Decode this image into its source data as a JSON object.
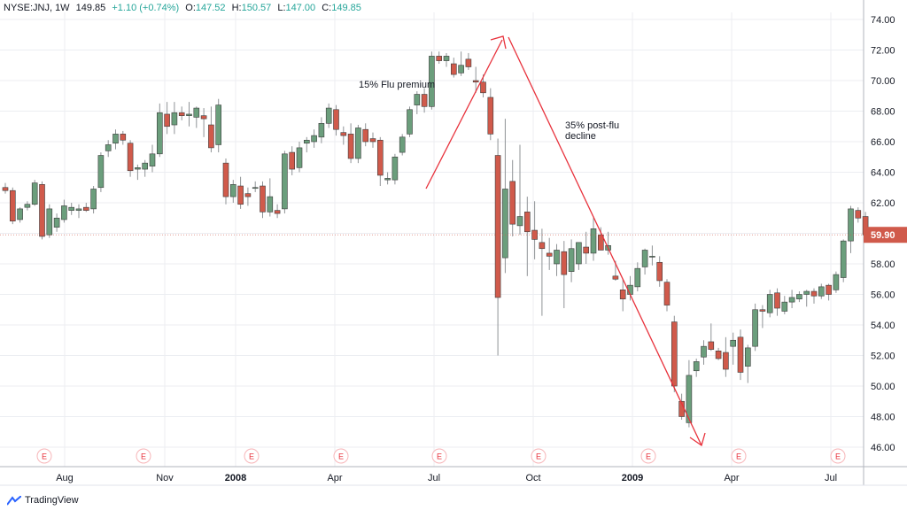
{
  "header": {
    "symbol": "NYSE:JNJ, 1W",
    "last": "149.85",
    "change": "+1.10 (+0.74%)",
    "o_label": "O:",
    "o_value": "147.52",
    "h_label": "H:",
    "h_value": "150.57",
    "l_label": "L:",
    "l_value": "147.00",
    "c_label": "C:",
    "c_value": "149.85"
  },
  "brand": "TradingView",
  "price_badge": "59.90",
  "colors": {
    "up": "#6b9e7c",
    "down": "#d05a4b",
    "annotation": "#e8323c",
    "earnings": "#e8323c"
  },
  "annotations": [
    "15% Flu premium",
    "35% post-flu",
    "decline"
  ],
  "chart_data": {
    "type": "candlestick",
    "ylim": [
      45,
      74
    ],
    "y_ticks": [
      "46.00",
      "48.00",
      "50.00",
      "52.00",
      "54.00",
      "56.00",
      "58.00",
      "60.00",
      "62.00",
      "64.00",
      "66.00",
      "68.00",
      "70.00",
      "72.00",
      "74.00"
    ],
    "x_ticks": [
      "Aug",
      "Nov",
      "2008",
      "Apr",
      "Jul",
      "Oct",
      "2009",
      "Apr",
      "Jul"
    ],
    "earnings_marker": "E",
    "candles": [
      [
        63.0,
        63.3,
        62.6,
        62.8
      ],
      [
        62.8,
        63.0,
        60.6,
        60.8
      ],
      [
        60.9,
        61.7,
        60.7,
        61.6
      ],
      [
        61.7,
        62.1,
        61.5,
        61.9
      ],
      [
        61.9,
        63.5,
        61.8,
        63.3
      ],
      [
        63.2,
        63.4,
        59.6,
        59.8
      ],
      [
        59.9,
        61.9,
        59.7,
        61.6
      ],
      [
        60.4,
        61.3,
        60.1,
        61.0
      ],
      [
        60.9,
        62.2,
        60.7,
        61.8
      ],
      [
        61.5,
        62.0,
        61.2,
        61.7
      ],
      [
        61.5,
        61.9,
        61.0,
        61.6
      ],
      [
        61.7,
        62.0,
        61.4,
        61.5
      ],
      [
        61.6,
        63.1,
        61.3,
        62.9
      ],
      [
        63.0,
        65.3,
        62.7,
        65.1
      ],
      [
        65.4,
        66.1,
        65.0,
        65.8
      ],
      [
        65.9,
        66.8,
        65.5,
        66.5
      ],
      [
        66.5,
        66.7,
        65.8,
        66.1
      ],
      [
        65.9,
        66.1,
        63.7,
        64.1
      ],
      [
        64.2,
        64.5,
        63.5,
        64.3
      ],
      [
        64.2,
        64.8,
        63.7,
        64.6
      ],
      [
        64.4,
        65.8,
        64.0,
        65.2
      ],
      [
        65.2,
        68.5,
        65.0,
        67.9
      ],
      [
        67.8,
        68.6,
        66.5,
        67.0
      ],
      [
        67.1,
        68.6,
        66.5,
        67.9
      ],
      [
        67.9,
        68.3,
        67.4,
        67.7
      ],
      [
        67.7,
        68.6,
        67.0,
        67.8
      ],
      [
        67.6,
        68.3,
        66.9,
        68.2
      ],
      [
        67.7,
        68.2,
        66.3,
        67.5
      ],
      [
        67.1,
        68.3,
        65.3,
        65.6
      ],
      [
        65.8,
        68.8,
        65.3,
        68.4
      ],
      [
        64.6,
        64.9,
        61.9,
        62.4
      ],
      [
        62.4,
        63.5,
        62.0,
        63.2
      ],
      [
        63.1,
        63.7,
        61.6,
        61.9
      ],
      [
        62.6,
        63.0,
        61.8,
        62.4
      ],
      [
        63.0,
        63.4,
        62.7,
        63.0
      ],
      [
        63.1,
        63.4,
        61.0,
        61.4
      ],
      [
        61.4,
        63.6,
        61.1,
        62.4
      ],
      [
        61.5,
        61.9,
        61.0,
        61.3
      ],
      [
        61.6,
        65.4,
        61.3,
        65.2
      ],
      [
        65.3,
        65.7,
        63.8,
        64.2
      ],
      [
        64.3,
        66.0,
        64.0,
        65.6
      ],
      [
        65.9,
        66.3,
        65.3,
        66.1
      ],
      [
        66.0,
        66.8,
        65.6,
        66.4
      ],
      [
        66.3,
        67.6,
        65.9,
        67.2
      ],
      [
        67.2,
        68.5,
        66.9,
        68.2
      ],
      [
        68.1,
        68.4,
        66.4,
        66.8
      ],
      [
        66.6,
        67.0,
        65.8,
        66.4
      ],
      [
        66.5,
        67.2,
        64.6,
        64.9
      ],
      [
        64.9,
        67.1,
        64.6,
        66.9
      ],
      [
        66.8,
        67.2,
        65.7,
        66.0
      ],
      [
        66.2,
        66.6,
        65.6,
        66.0
      ],
      [
        66.1,
        66.3,
        63.1,
        63.8
      ],
      [
        63.5,
        64.0,
        63.2,
        63.6
      ],
      [
        63.5,
        65.2,
        63.2,
        65.0
      ],
      [
        65.3,
        66.5,
        65.1,
        66.3
      ],
      [
        66.5,
        68.3,
        66.3,
        68.1
      ],
      [
        68.4,
        69.3,
        67.8,
        69.1
      ],
      [
        69.1,
        69.5,
        67.9,
        68.3
      ],
      [
        68.3,
        71.9,
        68.1,
        71.6
      ],
      [
        71.6,
        71.9,
        71.1,
        71.3
      ],
      [
        71.3,
        71.8,
        70.9,
        71.6
      ],
      [
        71.1,
        71.5,
        70.2,
        70.4
      ],
      [
        70.5,
        71.9,
        70.3,
        71.0
      ],
      [
        71.4,
        71.8,
        70.7,
        70.9
      ],
      [
        70.0,
        70.9,
        69.2,
        69.9
      ],
      [
        69.9,
        70.4,
        68.9,
        69.2
      ],
      [
        68.9,
        69.5,
        66.1,
        66.5
      ],
      [
        65.1,
        66.2,
        52.0,
        55.8
      ],
      [
        58.4,
        67.5,
        57.4,
        62.9
      ],
      [
        63.4,
        64.8,
        59.8,
        60.6
      ],
      [
        60.5,
        65.8,
        59.9,
        61.1
      ],
      [
        61.4,
        62.4,
        57.2,
        60.1
      ],
      [
        60.2,
        62.1,
        58.3,
        59.6
      ],
      [
        59.4,
        60.3,
        54.6,
        59.0
      ],
      [
        58.7,
        59.7,
        57.6,
        58.5
      ],
      [
        58.0,
        59.3,
        57.2,
        58.9
      ],
      [
        58.8,
        59.5,
        55.1,
        57.3
      ],
      [
        57.5,
        59.6,
        56.8,
        59.0
      ],
      [
        58.0,
        59.2,
        57.6,
        59.4
      ],
      [
        59.1,
        60.1,
        58.0,
        58.7
      ],
      [
        58.7,
        61.0,
        58.2,
        60.3
      ],
      [
        59.9,
        60.4,
        58.9,
        58.9
      ],
      [
        58.9,
        60.1,
        58.6,
        59.2
      ],
      [
        57.2,
        58.2,
        56.9,
        57.0
      ],
      [
        56.3,
        57.0,
        54.9,
        55.7
      ],
      [
        56.0,
        57.2,
        55.6,
        56.6
      ],
      [
        56.5,
        58.1,
        56.2,
        57.7
      ],
      [
        57.8,
        59.0,
        57.3,
        58.9
      ],
      [
        58.5,
        59.2,
        57.9,
        58.5
      ],
      [
        58.1,
        58.5,
        56.5,
        56.9
      ],
      [
        56.8,
        57.0,
        54.9,
        55.3
      ],
      [
        54.2,
        54.6,
        49.6,
        50.0
      ],
      [
        49.0,
        49.5,
        47.8,
        48.0
      ],
      [
        47.6,
        51.7,
        47.3,
        50.7
      ],
      [
        51.0,
        51.8,
        50.6,
        51.6
      ],
      [
        51.9,
        53.0,
        51.4,
        52.6
      ],
      [
        52.9,
        54.1,
        52.3,
        52.4
      ],
      [
        52.3,
        52.5,
        51.7,
        51.8
      ],
      [
        52.2,
        53.2,
        50.6,
        51.1
      ],
      [
        52.6,
        53.5,
        51.4,
        53.0
      ],
      [
        53.2,
        53.7,
        50.4,
        50.9
      ],
      [
        51.3,
        52.7,
        50.2,
        52.5
      ],
      [
        52.6,
        55.4,
        52.3,
        55.0
      ],
      [
        55.0,
        55.3,
        53.8,
        54.9
      ],
      [
        54.8,
        56.3,
        54.5,
        56.0
      ],
      [
        56.1,
        56.4,
        54.6,
        55.1
      ],
      [
        54.9,
        55.9,
        54.7,
        55.5
      ],
      [
        55.5,
        56.3,
        55.1,
        55.8
      ],
      [
        55.7,
        56.2,
        55.5,
        56.0
      ],
      [
        56.0,
        56.3,
        55.2,
        56.2
      ],
      [
        56.2,
        56.4,
        55.4,
        55.9
      ],
      [
        55.9,
        56.7,
        55.7,
        56.5
      ],
      [
        56.6,
        56.7,
        55.6,
        56.0
      ],
      [
        56.3,
        57.5,
        56.1,
        57.3
      ],
      [
        57.1,
        59.6,
        56.8,
        59.5
      ],
      [
        59.5,
        61.8,
        58.7,
        61.6
      ],
      [
        61.5,
        61.7,
        60.7,
        61.0
      ],
      [
        61.1,
        61.4,
        59.8,
        59.9
      ]
    ]
  }
}
